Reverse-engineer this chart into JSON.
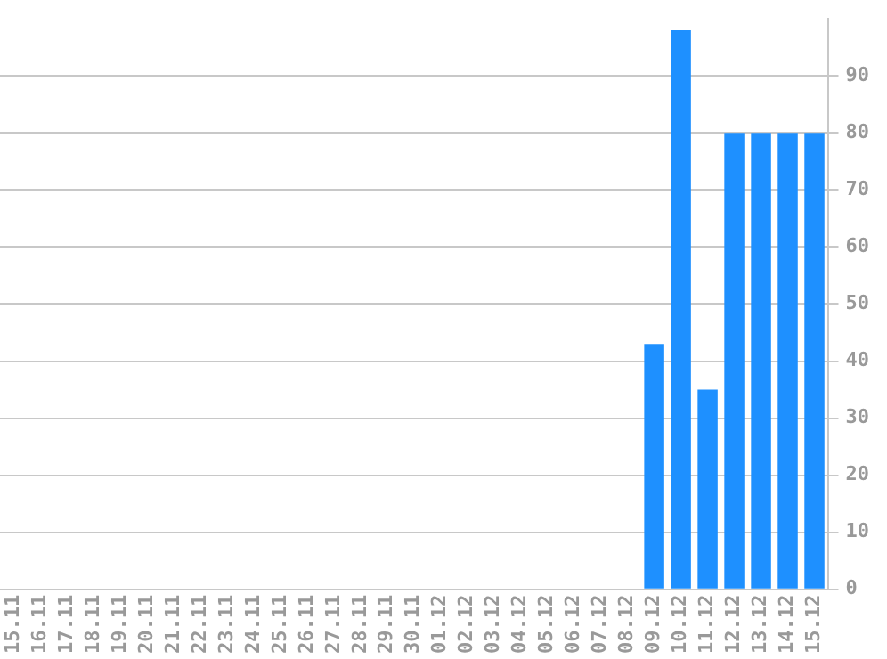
{
  "chart_data": {
    "type": "bar",
    "categories": [
      "15.11",
      "16.11",
      "17.11",
      "18.11",
      "19.11",
      "20.11",
      "21.11",
      "22.11",
      "23.11",
      "24.11",
      "25.11",
      "26.11",
      "27.11",
      "28.11",
      "29.11",
      "30.11",
      "01.12",
      "02.12",
      "03.12",
      "04.12",
      "05.12",
      "06.12",
      "07.12",
      "08.12",
      "09.12",
      "10.12",
      "11.12",
      "12.12",
      "13.12",
      "14.12",
      "15.12"
    ],
    "values": [
      0,
      0,
      0,
      0,
      0,
      0,
      0,
      0,
      0,
      0,
      0,
      0,
      0,
      0,
      0,
      0,
      0,
      0,
      0,
      0,
      0,
      0,
      0,
      0,
      43,
      98,
      35,
      80,
      80,
      80,
      80
    ],
    "color": "#1e90ff",
    "ylim": [
      0,
      100
    ],
    "yticks": [
      0,
      10,
      20,
      30,
      40,
      50,
      60,
      70,
      80,
      90
    ],
    "grid": "y"
  }
}
